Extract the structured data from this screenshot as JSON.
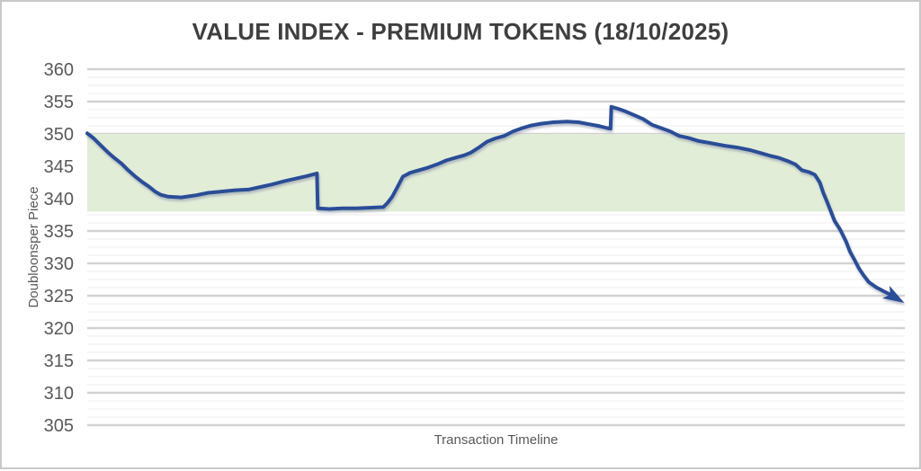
{
  "chart": {
    "title": "VALUE INDEX - PREMIUM TOKENS (18/10/2025)",
    "x_axis_title": "Transaction Timeline",
    "y_axis_title": "Doubloonsper Piece"
  },
  "colors": {
    "background": "#ffffff",
    "window_border": "#c9c9c9",
    "title_text": "#3f3f3f",
    "axis_text": "#595959",
    "grid_major": "#d2d2d2",
    "grid_minor": "#eeeeee"
  },
  "chart_data": {
    "type": "line",
    "title": "VALUE INDEX - PREMIUM TOKENS (18/10/2025)",
    "xlabel": "Transaction Timeline",
    "ylabel": "Doubloonsper Piece",
    "ylim": [
      305,
      360
    ],
    "yticks": [
      360,
      355,
      350,
      345,
      340,
      335,
      330,
      325,
      320,
      315,
      310,
      305
    ],
    "minor_gridline_step": 1.25,
    "grid": "major+minor",
    "legend_position": "none",
    "x_range": [
      0,
      100
    ],
    "x_unit": "timeline-position-percent",
    "highlight_band": {
      "y_from": 338,
      "y_to": 350,
      "color": "#e2edd8"
    },
    "line": {
      "color": "#2c4d97",
      "width": 4,
      "arrow_end": true
    },
    "series": [
      {
        "name": "value-index",
        "points": [
          [
            0,
            350.1
          ],
          [
            0.8,
            349.3
          ],
          [
            1.6,
            348.3
          ],
          [
            2.5,
            347.2
          ],
          [
            3.3,
            346.3
          ],
          [
            4.2,
            345.4
          ],
          [
            5,
            344.4
          ],
          [
            5.8,
            343.5
          ],
          [
            6.7,
            342.6
          ],
          [
            7.5,
            341.9
          ],
          [
            8.3,
            341.1
          ],
          [
            9,
            340.6
          ],
          [
            9.9,
            340.3
          ],
          [
            11.5,
            340.2
          ],
          [
            13.2,
            340.5
          ],
          [
            14.8,
            340.9
          ],
          [
            16.4,
            341.1
          ],
          [
            18.1,
            341.3
          ],
          [
            19.7,
            341.4
          ],
          [
            21.2,
            341.8
          ],
          [
            22.6,
            342.2
          ],
          [
            24.1,
            342.7
          ],
          [
            25.5,
            343.1
          ],
          [
            26.9,
            343.5
          ],
          [
            28.1,
            343.9
          ],
          [
            28.2,
            338.5
          ],
          [
            29.6,
            338.4
          ],
          [
            31.2,
            338.5
          ],
          [
            32.9,
            338.5
          ],
          [
            34.5,
            338.6
          ],
          [
            36.2,
            338.7
          ],
          [
            36.7,
            339.3
          ],
          [
            37.3,
            340.3
          ],
          [
            37.9,
            341.7
          ],
          [
            38.6,
            343.4
          ],
          [
            39.5,
            344
          ],
          [
            40.6,
            344.4
          ],
          [
            41.7,
            344.8
          ],
          [
            42.8,
            345.3
          ],
          [
            43.9,
            345.9
          ],
          [
            45,
            346.3
          ],
          [
            46.1,
            346.7
          ],
          [
            46.9,
            347.1
          ],
          [
            47.9,
            347.9
          ],
          [
            48.9,
            348.8
          ],
          [
            49.9,
            349.3
          ],
          [
            51,
            349.7
          ],
          [
            52.1,
            350.4
          ],
          [
            53.2,
            350.9
          ],
          [
            54.3,
            351.3
          ],
          [
            55.6,
            351.6
          ],
          [
            57,
            351.8
          ],
          [
            58.7,
            351.9
          ],
          [
            60.1,
            351.8
          ],
          [
            61.4,
            351.5
          ],
          [
            62.7,
            351.2
          ],
          [
            63.6,
            350.9
          ],
          [
            64,
            350.8
          ],
          [
            64.1,
            354.2
          ],
          [
            64.9,
            353.9
          ],
          [
            65.8,
            353.5
          ],
          [
            66.9,
            352.9
          ],
          [
            68,
            352.3
          ],
          [
            69.1,
            351.4
          ],
          [
            70.2,
            350.9
          ],
          [
            71.3,
            350.4
          ],
          [
            72.4,
            349.7
          ],
          [
            73.5,
            349.4
          ],
          [
            74.8,
            348.9
          ],
          [
            76.2,
            348.6
          ],
          [
            77.9,
            348.2
          ],
          [
            79.5,
            347.9
          ],
          [
            81.1,
            347.5
          ],
          [
            82.5,
            347
          ],
          [
            83.6,
            346.6
          ],
          [
            84.6,
            346.3
          ],
          [
            85.7,
            345.8
          ],
          [
            86.6,
            345.3
          ],
          [
            87.4,
            344.4
          ],
          [
            88.3,
            344.1
          ],
          [
            89,
            343.7
          ],
          [
            89.6,
            342.5
          ],
          [
            90,
            341
          ],
          [
            90.5,
            339.5
          ],
          [
            90.9,
            338.2
          ],
          [
            91.4,
            336.6
          ],
          [
            92.1,
            335.2
          ],
          [
            92.8,
            333.4
          ],
          [
            93.3,
            331.8
          ],
          [
            93.9,
            330.4
          ],
          [
            94.4,
            329.2
          ],
          [
            95,
            328.1
          ],
          [
            95.6,
            327.1
          ],
          [
            96.5,
            326.3
          ],
          [
            97.4,
            325.7
          ],
          [
            98.2,
            325.2
          ],
          [
            99,
            324.6
          ]
        ]
      }
    ]
  }
}
